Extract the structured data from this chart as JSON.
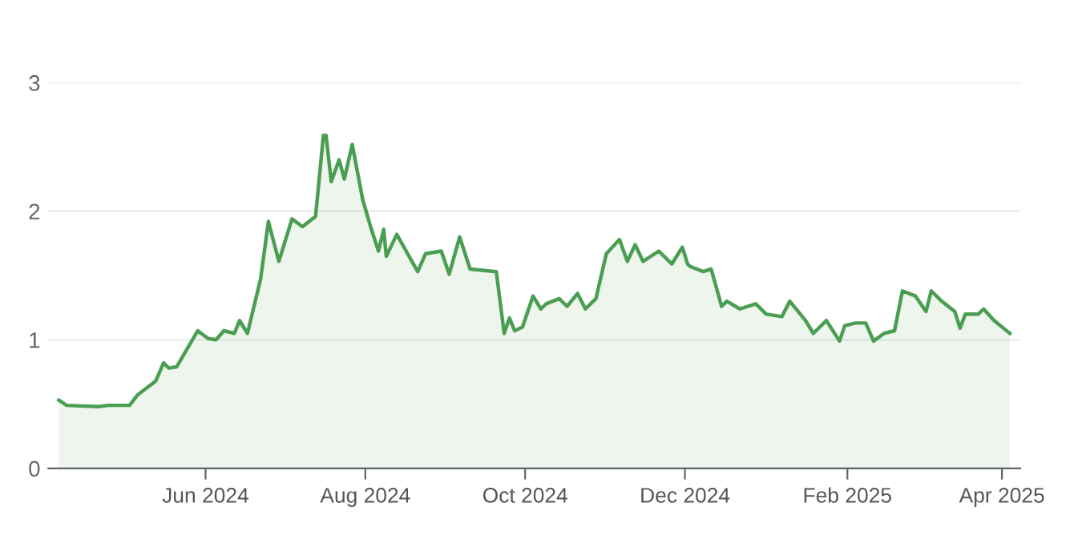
{
  "chart_data": {
    "type": "area",
    "x": [
      "2024-04-06",
      "2024-04-09",
      "2024-04-21",
      "2024-04-25",
      "2024-05-03",
      "2024-05-06",
      "2024-05-13",
      "2024-05-16",
      "2024-05-18",
      "2024-05-21",
      "2024-05-29",
      "2024-06-02",
      "2024-06-05",
      "2024-06-08",
      "2024-06-12",
      "2024-06-14",
      "2024-06-17",
      "2024-06-22",
      "2024-06-25",
      "2024-06-29",
      "2024-07-04",
      "2024-07-08",
      "2024-07-13",
      "2024-07-16",
      "2024-07-17",
      "2024-07-19",
      "2024-07-22",
      "2024-07-24",
      "2024-07-27",
      "2024-07-31",
      "2024-08-03",
      "2024-08-06",
      "2024-08-08",
      "2024-08-09",
      "2024-08-13",
      "2024-08-21",
      "2024-08-24",
      "2024-08-30",
      "2024-09-02",
      "2024-09-06",
      "2024-09-10",
      "2024-09-20",
      "2024-09-23",
      "2024-09-25",
      "2024-09-27",
      "2024-09-30",
      "2024-10-04",
      "2024-10-07",
      "2024-10-09",
      "2024-10-14",
      "2024-10-17",
      "2024-10-21",
      "2024-10-24",
      "2024-10-28",
      "2024-11-01",
      "2024-11-06",
      "2024-11-09",
      "2024-11-12",
      "2024-11-15",
      "2024-11-21",
      "2024-11-26",
      "2024-11-30",
      "2024-12-02",
      "2024-12-03",
      "2024-12-08",
      "2024-12-11",
      "2024-12-15",
      "2024-12-17",
      "2024-12-22",
      "2024-12-28",
      "2025-01-01",
      "2025-01-07",
      "2025-01-10",
      "2025-01-16",
      "2025-01-19",
      "2025-01-24",
      "2025-01-29",
      "2025-01-31",
      "2025-02-04",
      "2025-02-08",
      "2025-02-11",
      "2025-02-15",
      "2025-02-19",
      "2025-02-22",
      "2025-02-27",
      "2025-03-03",
      "2025-03-05",
      "2025-03-09",
      "2025-03-14",
      "2025-03-16",
      "2025-03-18",
      "2025-03-23",
      "2025-03-25",
      "2025-03-29",
      "2025-04-04"
    ],
    "series": [
      {
        "color": "#4a9e52",
        "values": [
          0.53,
          0.49,
          0.48,
          0.49,
          0.49,
          0.57,
          0.68,
          0.82,
          0.78,
          0.79,
          1.07,
          1.01,
          1.0,
          1.07,
          1.05,
          1.15,
          1.05,
          1.47,
          1.92,
          1.61,
          1.94,
          1.88,
          1.96,
          2.59,
          2.59,
          2.23,
          2.4,
          2.25,
          2.52,
          2.09,
          1.88,
          1.69,
          1.86,
          1.65,
          1.82,
          1.53,
          1.67,
          1.69,
          1.51,
          1.8,
          1.55,
          1.53,
          1.05,
          1.17,
          1.07,
          1.1,
          1.34,
          1.24,
          1.28,
          1.32,
          1.26,
          1.36,
          1.24,
          1.32,
          1.67,
          1.78,
          1.61,
          1.74,
          1.61,
          1.69,
          1.59,
          1.72,
          1.59,
          1.57,
          1.53,
          1.55,
          1.26,
          1.3,
          1.24,
          1.28,
          1.2,
          1.18,
          1.3,
          1.15,
          1.05,
          1.15,
          0.99,
          1.11,
          1.13,
          1.13,
          0.99,
          1.05,
          1.07,
          1.38,
          1.34,
          1.22,
          1.38,
          1.3,
          1.22,
          1.09,
          1.2,
          1.2,
          1.24,
          1.15,
          1.05
        ]
      }
    ],
    "xlim": [
      "2024-04-02",
      "2025-04-08"
    ],
    "xticks": [
      {
        "value": "2024-06-01",
        "label": "Jun 2024"
      },
      {
        "value": "2024-08-01",
        "label": "Aug 2024"
      },
      {
        "value": "2024-10-01",
        "label": "Oct 2024"
      },
      {
        "value": "2024-12-01",
        "label": "Dec 2024"
      },
      {
        "value": "2025-02-01",
        "label": "Feb 2025"
      },
      {
        "value": "2025-04-01",
        "label": "Apr 2025"
      }
    ],
    "ylim": [
      0,
      3
    ],
    "yticks": [
      0,
      1,
      2,
      3
    ],
    "grid": "y"
  }
}
